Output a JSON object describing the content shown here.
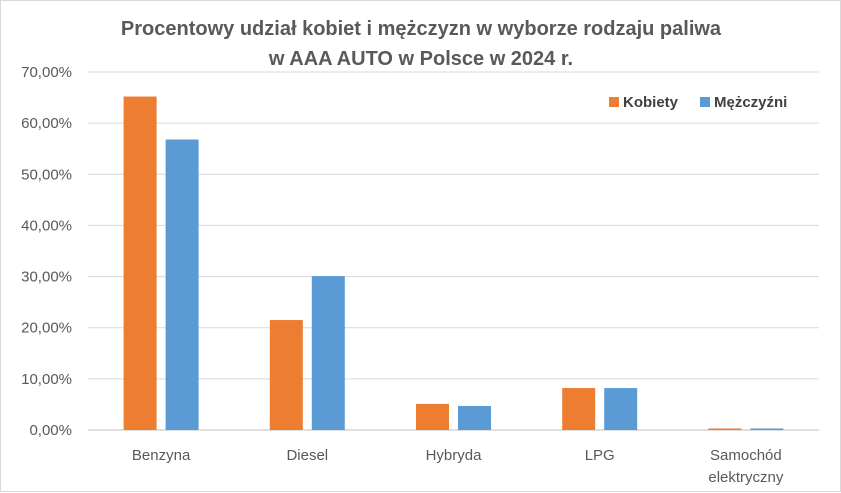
{
  "chart_data": {
    "type": "bar",
    "title_lines": [
      "Procentowy udział kobiet i mężczyzn w wyborze rodzaju paliwa",
      "w AAA AUTO w Polsce w 2024 r."
    ],
    "categories": [
      [
        "Benzyna"
      ],
      [
        "Diesel"
      ],
      [
        "Hybryda"
      ],
      [
        "LPG"
      ],
      [
        "Samochód",
        "elektryczny"
      ]
    ],
    "series": [
      {
        "name": "Kobiety",
        "color": "#ed7d31",
        "values": [
          65.2,
          21.5,
          5.1,
          8.2,
          0.3
        ]
      },
      {
        "name": "Mężczyźni",
        "color": "#5b9bd5",
        "values": [
          56.8,
          30.1,
          4.7,
          8.2,
          0.3
        ]
      }
    ],
    "ylim": [
      0,
      70
    ],
    "yticks": [
      "0,00%",
      "10,00%",
      "20,00%",
      "30,00%",
      "40,00%",
      "50,00%",
      "60,00%",
      "70,00%"
    ],
    "grid": true,
    "legend_position": "top-right"
  }
}
